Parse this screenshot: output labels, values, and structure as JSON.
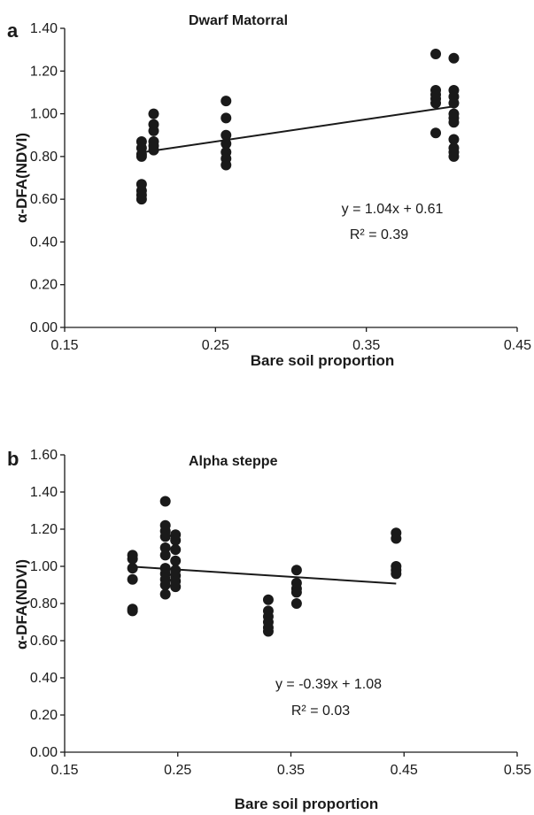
{
  "chart_data": [
    {
      "type": "scatter",
      "panel_label": "a",
      "title": "Dwarf Matorral",
      "xlabel": "Bare soil proportion",
      "ylabel": "α-DFA(NDVI)",
      "xlim": [
        0.15,
        0.45
      ],
      "ylim": [
        0.0,
        1.4
      ],
      "x_ticks": [
        "0.15",
        "0.25",
        "0.35",
        "0.45"
      ],
      "y_ticks": [
        "0.00",
        "0.20",
        "0.40",
        "0.60",
        "0.80",
        "1.00",
        "1.20",
        "1.40"
      ],
      "grid": false,
      "marker_color": "#1a1a1a",
      "points": [
        {
          "x": 0.201,
          "y": 0.87
        },
        {
          "x": 0.201,
          "y": 0.84
        },
        {
          "x": 0.201,
          "y": 0.81
        },
        {
          "x": 0.201,
          "y": 0.8
        },
        {
          "x": 0.201,
          "y": 0.67
        },
        {
          "x": 0.201,
          "y": 0.64
        },
        {
          "x": 0.201,
          "y": 0.62
        },
        {
          "x": 0.201,
          "y": 0.6
        },
        {
          "x": 0.209,
          "y": 1.0
        },
        {
          "x": 0.209,
          "y": 0.95
        },
        {
          "x": 0.209,
          "y": 0.92
        },
        {
          "x": 0.209,
          "y": 0.87
        },
        {
          "x": 0.209,
          "y": 0.85
        },
        {
          "x": 0.209,
          "y": 0.83
        },
        {
          "x": 0.257,
          "y": 1.06
        },
        {
          "x": 0.257,
          "y": 0.98
        },
        {
          "x": 0.257,
          "y": 0.9
        },
        {
          "x": 0.257,
          "y": 0.86
        },
        {
          "x": 0.257,
          "y": 0.82
        },
        {
          "x": 0.257,
          "y": 0.79
        },
        {
          "x": 0.257,
          "y": 0.76
        },
        {
          "x": 0.396,
          "y": 1.28
        },
        {
          "x": 0.396,
          "y": 1.11
        },
        {
          "x": 0.396,
          "y": 1.09
        },
        {
          "x": 0.396,
          "y": 1.07
        },
        {
          "x": 0.396,
          "y": 1.05
        },
        {
          "x": 0.396,
          "y": 0.91
        },
        {
          "x": 0.408,
          "y": 1.26
        },
        {
          "x": 0.408,
          "y": 1.11
        },
        {
          "x": 0.408,
          "y": 1.08
        },
        {
          "x": 0.408,
          "y": 1.05
        },
        {
          "x": 0.408,
          "y": 1.0
        },
        {
          "x": 0.408,
          "y": 0.98
        },
        {
          "x": 0.408,
          "y": 0.96
        },
        {
          "x": 0.408,
          "y": 0.88
        },
        {
          "x": 0.408,
          "y": 0.84
        },
        {
          "x": 0.408,
          "y": 0.82
        },
        {
          "x": 0.408,
          "y": 0.8
        }
      ],
      "trendline": {
        "slope": 1.04,
        "intercept": 0.61,
        "x_range": [
          0.201,
          0.408
        ]
      },
      "annotation": {
        "equation": "y = 1.04x + 0.61",
        "r2": "R² = 0.39"
      }
    },
    {
      "type": "scatter",
      "panel_label": "b",
      "title": "Alpha steppe",
      "xlabel": "Bare soil proportion",
      "ylabel": "α-DFA(NDVI)",
      "xlim": [
        0.15,
        0.55
      ],
      "ylim": [
        0.0,
        1.6
      ],
      "x_ticks": [
        "0.15",
        "0.25",
        "0.35",
        "0.45",
        "0.55"
      ],
      "y_ticks": [
        "0.00",
        "0.20",
        "0.40",
        "0.60",
        "0.80",
        "1.00",
        "1.20",
        "1.40",
        "1.60"
      ],
      "grid": false,
      "marker_color": "#1a1a1a",
      "points": [
        {
          "x": 0.21,
          "y": 1.06
        },
        {
          "x": 0.21,
          "y": 1.04
        },
        {
          "x": 0.21,
          "y": 0.99
        },
        {
          "x": 0.21,
          "y": 0.93
        },
        {
          "x": 0.21,
          "y": 0.77
        },
        {
          "x": 0.21,
          "y": 0.76
        },
        {
          "x": 0.239,
          "y": 1.35
        },
        {
          "x": 0.239,
          "y": 1.22
        },
        {
          "x": 0.239,
          "y": 1.19
        },
        {
          "x": 0.239,
          "y": 1.16
        },
        {
          "x": 0.239,
          "y": 1.1
        },
        {
          "x": 0.239,
          "y": 1.06
        },
        {
          "x": 0.239,
          "y": 0.99
        },
        {
          "x": 0.239,
          "y": 0.96
        },
        {
          "x": 0.239,
          "y": 0.93
        },
        {
          "x": 0.239,
          "y": 0.9
        },
        {
          "x": 0.239,
          "y": 0.85
        },
        {
          "x": 0.248,
          "y": 1.17
        },
        {
          "x": 0.248,
          "y": 1.14
        },
        {
          "x": 0.248,
          "y": 1.09
        },
        {
          "x": 0.248,
          "y": 1.03
        },
        {
          "x": 0.248,
          "y": 0.98
        },
        {
          "x": 0.248,
          "y": 0.95
        },
        {
          "x": 0.248,
          "y": 0.92
        },
        {
          "x": 0.248,
          "y": 0.89
        },
        {
          "x": 0.33,
          "y": 0.82
        },
        {
          "x": 0.33,
          "y": 0.76
        },
        {
          "x": 0.33,
          "y": 0.73
        },
        {
          "x": 0.33,
          "y": 0.7
        },
        {
          "x": 0.33,
          "y": 0.67
        },
        {
          "x": 0.33,
          "y": 0.65
        },
        {
          "x": 0.355,
          "y": 0.98
        },
        {
          "x": 0.355,
          "y": 0.91
        },
        {
          "x": 0.355,
          "y": 0.88
        },
        {
          "x": 0.355,
          "y": 0.86
        },
        {
          "x": 0.355,
          "y": 0.8
        },
        {
          "x": 0.443,
          "y": 1.18
        },
        {
          "x": 0.443,
          "y": 1.15
        },
        {
          "x": 0.443,
          "y": 1.0
        },
        {
          "x": 0.443,
          "y": 0.98
        },
        {
          "x": 0.443,
          "y": 0.96
        }
      ],
      "trendline": {
        "slope": -0.39,
        "intercept": 1.08,
        "x_range": [
          0.21,
          0.443
        ]
      },
      "annotation": {
        "equation": "y = -0.39x + 1.08",
        "r2": "R² = 0.03"
      }
    }
  ]
}
